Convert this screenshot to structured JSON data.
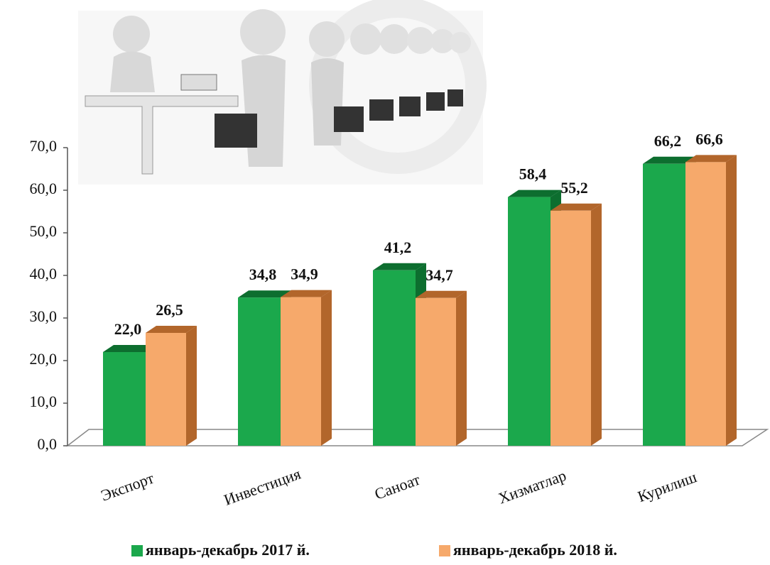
{
  "chart_data": {
    "type": "bar3d",
    "categories": [
      "Экспорт",
      "Инвестиция",
      "Саноат",
      "Хизматлар",
      "Курилиш"
    ],
    "series": [
      {
        "name": "январь-декабрь 2017 й.",
        "color": "#1ba84c",
        "side_color": "#0d6e2f",
        "values": [
          22.0,
          34.8,
          41.2,
          58.4,
          66.2
        ],
        "value_labels": [
          "22,0",
          "34,8",
          "41,2",
          "58,4",
          "66,2"
        ]
      },
      {
        "name": "январь-декабрь 2018 й.",
        "color": "#f6a96b",
        "side_color": "#b2662b",
        "values": [
          26.5,
          34.9,
          34.7,
          55.2,
          66.6
        ],
        "value_labels": [
          "26,5",
          "34,9",
          "34,7",
          "55,2",
          "66,6"
        ]
      }
    ],
    "ylim": [
      0,
      70
    ],
    "yticks": [
      {
        "value": 0,
        "label": "0,0"
      },
      {
        "value": 10,
        "label": "10,0"
      },
      {
        "value": 20,
        "label": "20,0"
      },
      {
        "value": 30,
        "label": "30,0"
      },
      {
        "value": 40,
        "label": "40,0"
      },
      {
        "value": 50,
        "label": "50,0"
      },
      {
        "value": 60,
        "label": "60,0"
      },
      {
        "value": 70,
        "label": "70,0"
      }
    ],
    "grid": false
  }
}
